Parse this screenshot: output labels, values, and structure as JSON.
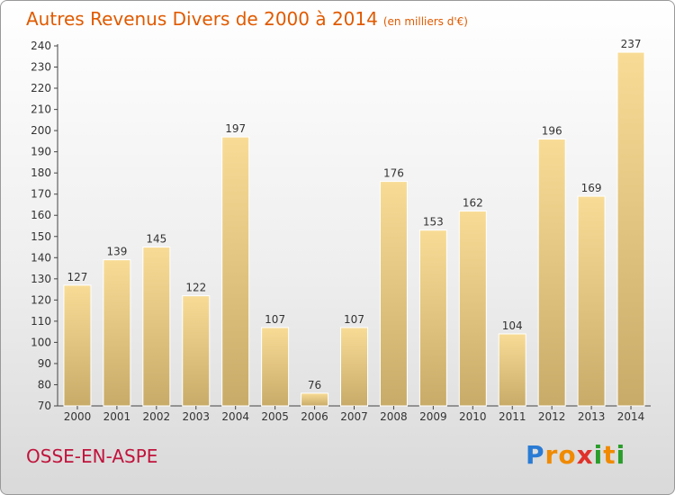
{
  "title": "Autres Revenus Divers de 2000 à 2014",
  "subtitle": "(en milliers d'€)",
  "commune": "OSSE-EN-ASPE",
  "logo": {
    "text": "Proxiti",
    "letters": [
      "P",
      "r",
      "o",
      "x",
      "i",
      "t",
      "i"
    ],
    "colors": [
      "#2a7bd4",
      "#f08a00",
      "#f08a00",
      "#e0322a",
      "#2a9d2a",
      "#f08a00",
      "#2a9d2a"
    ]
  },
  "colors": {
    "title": "#e05a00",
    "commune": "#c0143c",
    "bar_top": "#f8dc96",
    "bar_bottom": "#c8ab68"
  },
  "chart_data": {
    "type": "bar",
    "title": "Autres Revenus Divers de 2000 à 2014",
    "xlabel": "",
    "ylabel": "",
    "categories": [
      "2000",
      "2001",
      "2002",
      "2003",
      "2004",
      "2005",
      "2006",
      "2007",
      "2008",
      "2009",
      "2010",
      "2011",
      "2012",
      "2013",
      "2014"
    ],
    "values": [
      127,
      139,
      145,
      122,
      197,
      107,
      76,
      107,
      176,
      153,
      162,
      104,
      196,
      169,
      237
    ],
    "ylim": [
      70,
      240
    ],
    "yticks": [
      70,
      80,
      90,
      100,
      110,
      120,
      130,
      140,
      150,
      160,
      170,
      180,
      190,
      200,
      210,
      220,
      230,
      240
    ],
    "grid": false,
    "data_labels": true
  }
}
